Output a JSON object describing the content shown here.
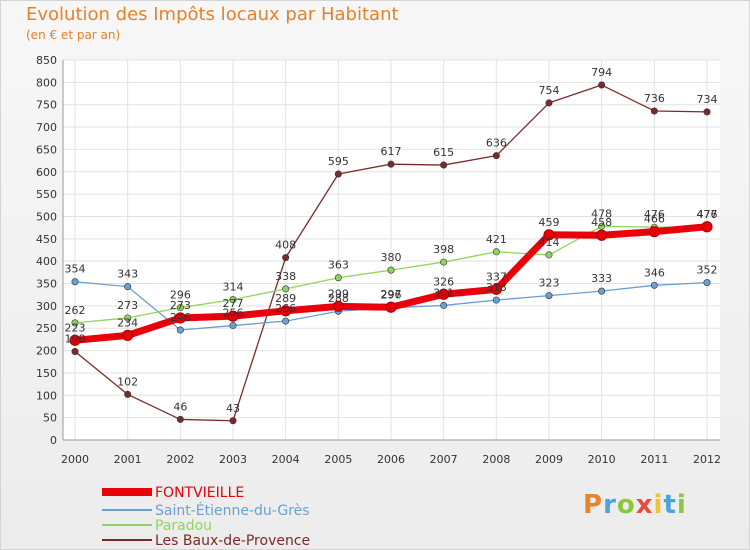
{
  "title": "Evolution des Impôts locaux par Habitant",
  "subtitle": "(en € et par an)",
  "logo": {
    "letters": [
      "P",
      "r",
      "o",
      "x",
      "i",
      "t",
      "i"
    ]
  },
  "chart_data": {
    "type": "line",
    "x": [
      "2000",
      "2001",
      "2002",
      "2003",
      "2004",
      "2005",
      "2006",
      "2007",
      "2008",
      "2009",
      "2010",
      "2011",
      "2012"
    ],
    "ylim": [
      0,
      850
    ],
    "yticks": [
      0,
      50,
      100,
      150,
      200,
      250,
      300,
      350,
      400,
      450,
      500,
      550,
      600,
      650,
      700,
      750,
      800,
      850
    ],
    "grid": true,
    "legend_position": "bottom-left",
    "series": [
      {
        "name": "FONTVIEILLE",
        "color": "#e8000b",
        "values": [
          223,
          234,
          273,
          277,
          289,
          299,
          297,
          326,
          337,
          459,
          458,
          466,
          477
        ]
      },
      {
        "name": "Saint-Étienne-du-Grès",
        "color": "#6a9fd4",
        "values": [
          354,
          343,
          246,
          256,
          266,
          288,
          296,
          301,
          313,
          323,
          333,
          346,
          352
        ]
      },
      {
        "name": "Paradou",
        "color": "#8ed55c",
        "values": [
          262,
          273,
          296,
          314,
          338,
          363,
          380,
          398,
          421,
          414,
          478,
          476,
          476
        ]
      },
      {
        "name": "Les Baux-de-Provence",
        "color": "#7b2a2a",
        "values": [
          198,
          102,
          46,
          43,
          408,
          595,
          617,
          615,
          636,
          754,
          794,
          736,
          734
        ]
      }
    ]
  }
}
